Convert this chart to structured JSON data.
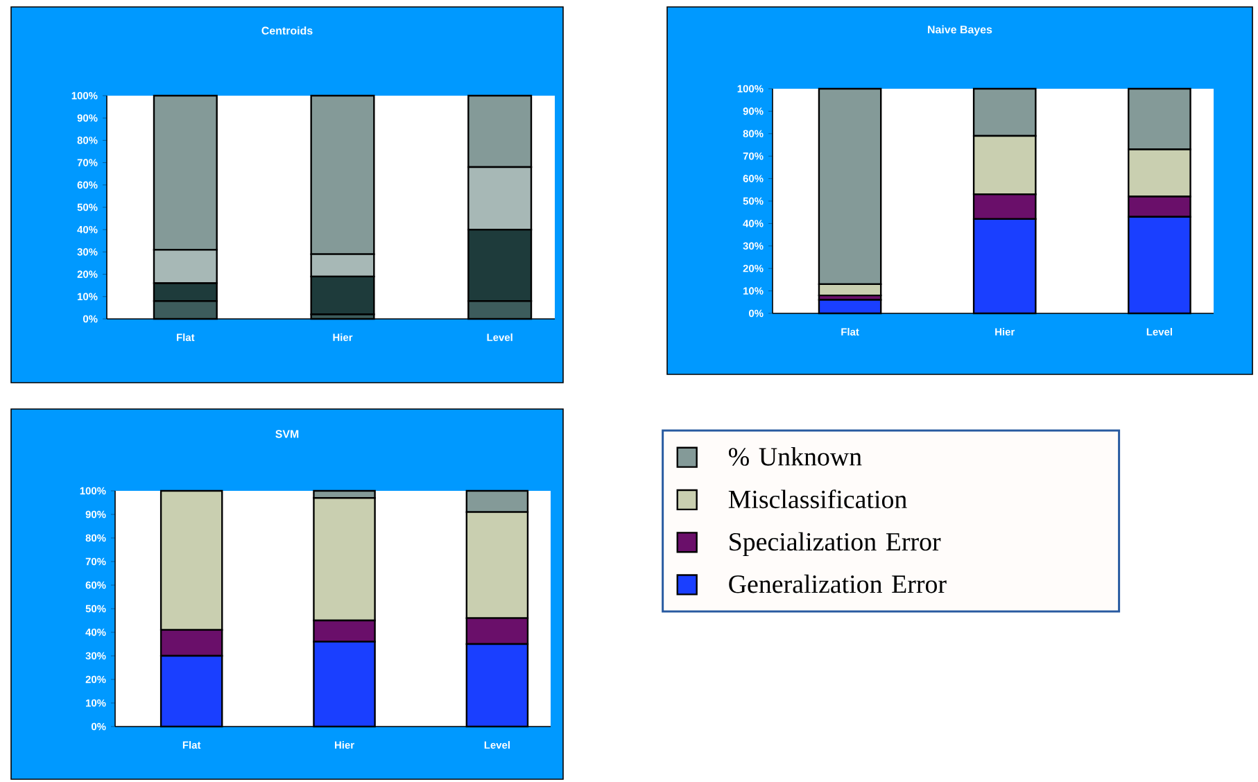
{
  "chart_data": [
    {
      "type": "bar",
      "title": "Centroids",
      "stacked": true,
      "categories": [
        "Flat",
        "Hier",
        "Level"
      ],
      "ylim": [
        0,
        100
      ],
      "yticks": [
        {
          "value": 0,
          "label": "0%"
        },
        {
          "value": 10,
          "label": "10%"
        },
        {
          "value": 20,
          "label": "20%"
        },
        {
          "value": 30,
          "label": "30%"
        },
        {
          "value": 40,
          "label": "40%"
        },
        {
          "value": 50,
          "label": "50%"
        },
        {
          "value": 60,
          "label": "60%"
        },
        {
          "value": 70,
          "label": "70%"
        },
        {
          "value": 80,
          "label": "80%"
        },
        {
          "value": 90,
          "label": "90%"
        },
        {
          "value": 100,
          "label": "100%"
        }
      ],
      "series": [
        {
          "color": "#3d5c5c",
          "values": [
            8,
            2,
            8
          ]
        },
        {
          "color": "#1e3b3b",
          "values": [
            8,
            17,
            32
          ]
        },
        {
          "color": "#a7b8b6",
          "values": [
            15,
            10,
            28
          ]
        },
        {
          "color": "#849a98",
          "values": [
            69,
            71,
            32
          ]
        }
      ]
    },
    {
      "type": "bar",
      "title": "Naive Bayes",
      "stacked": true,
      "categories": [
        "Flat",
        "Hier",
        "Level"
      ],
      "ylim": [
        0,
        100
      ],
      "yticks": [
        {
          "value": 0,
          "label": "0%"
        },
        {
          "value": 10,
          "label": "10%"
        },
        {
          "value": 20,
          "label": "20%"
        },
        {
          "value": 30,
          "label": "30%"
        },
        {
          "value": 40,
          "label": "40%"
        },
        {
          "value": 50,
          "label": "50%"
        },
        {
          "value": 60,
          "label": "60%"
        },
        {
          "value": 70,
          "label": "70%"
        },
        {
          "value": 80,
          "label": "80%"
        },
        {
          "value": 90,
          "label": "90%"
        },
        {
          "value": 100,
          "label": "100%"
        }
      ],
      "series": [
        {
          "color": "#1a3fff",
          "values": [
            6,
            42,
            43
          ]
        },
        {
          "color": "#6a0f6a",
          "values": [
            2,
            11,
            9
          ]
        },
        {
          "color": "#c9cfb0",
          "values": [
            5,
            26,
            21
          ]
        },
        {
          "color": "#849a98",
          "values": [
            87,
            21,
            27
          ]
        }
      ]
    },
    {
      "type": "bar",
      "title": "SVM",
      "stacked": true,
      "legend": "right",
      "categories": [
        "Flat",
        "Hier",
        "Level"
      ],
      "ylim": [
        0,
        100
      ],
      "yticks": [
        {
          "value": 0,
          "label": "0%"
        },
        {
          "value": 10,
          "label": "10%"
        },
        {
          "value": 20,
          "label": "20%"
        },
        {
          "value": 30,
          "label": "30%"
        },
        {
          "value": 40,
          "label": "40%"
        },
        {
          "value": 50,
          "label": "50%"
        },
        {
          "value": 60,
          "label": "60%"
        },
        {
          "value": 70,
          "label": "70%"
        },
        {
          "value": 80,
          "label": "80%"
        },
        {
          "value": 90,
          "label": "90%"
        },
        {
          "value": 100,
          "label": "100%"
        }
      ],
      "series": [
        {
          "name": "Generalization Error",
          "color": "#1a3fff",
          "values": [
            30,
            36,
            35
          ]
        },
        {
          "name": "Specialization Error",
          "color": "#6a0f6a",
          "values": [
            11,
            9,
            11
          ]
        },
        {
          "name": "Misclassification",
          "color": "#c9cfb0",
          "values": [
            59,
            52,
            45
          ]
        },
        {
          "name": "% Unknown",
          "color": "#849a98",
          "values": [
            0,
            3,
            9
          ]
        }
      ]
    }
  ]
}
